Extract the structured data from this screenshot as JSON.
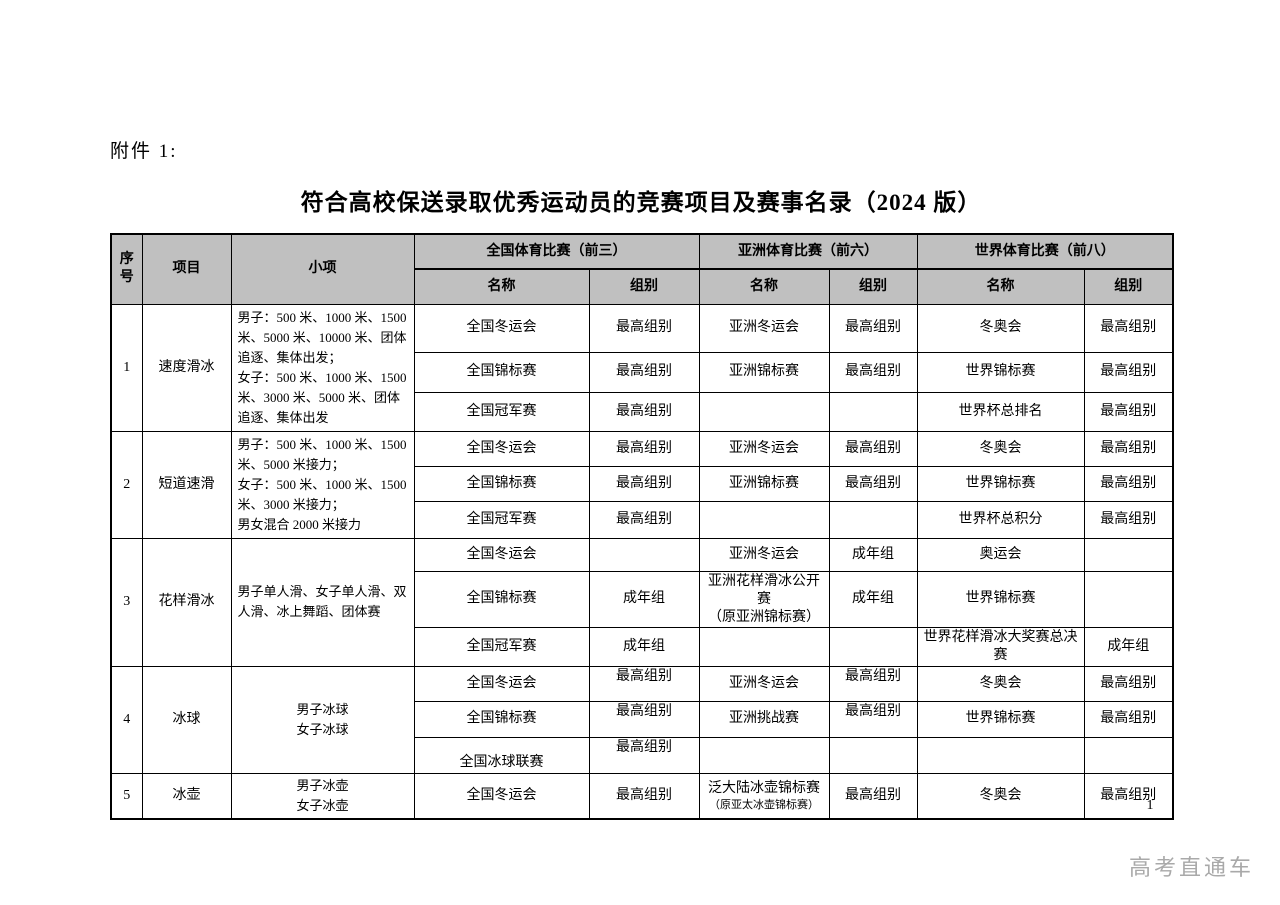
{
  "page": {
    "attachment_label": "附件 1:",
    "title": "符合高校保送录取优秀运动员的竞赛项目及赛事名录（2024 版）",
    "page_number": "1",
    "watermark": "高考直通车"
  },
  "table": {
    "header": {
      "seq": "序号",
      "sport": "项目",
      "events": "小项",
      "name_label": "名称",
      "division_label": "组别",
      "groups": [
        "全国体育比赛（前三）",
        "亚洲体育比赛（前六）",
        "世界体育比赛（前八）"
      ]
    },
    "rows": [
      {
        "seq": "1",
        "sport": "速度滑冰",
        "events_align": "left",
        "events": [
          "男子：500 米、1000 米、1500 米、5000 米、10000 米、团体追逐、集体出发；",
          "女子：500 米、1000 米、1500 米、3000 米、5000 米、团体追逐、集体出发"
        ],
        "subrows": [
          {
            "national": {
              "name": "全国冬运会",
              "div": "最高组别"
            },
            "asia": {
              "name": "亚洲冬运会",
              "div": "最高组别"
            },
            "world": {
              "name": "冬奥会",
              "div": "最高组别"
            }
          },
          {
            "national": {
              "name": "全国锦标赛",
              "div": "最高组别"
            },
            "asia": {
              "name": "亚洲锦标赛",
              "div": "最高组别"
            },
            "world": {
              "name": "世界锦标赛",
              "div": "最高组别"
            }
          },
          {
            "national": {
              "name": "全国冠军赛",
              "div": "最高组别"
            },
            "asia": {
              "name": "",
              "div": ""
            },
            "world": {
              "name": "世界杯总排名",
              "div": "最高组别"
            }
          }
        ]
      },
      {
        "seq": "2",
        "sport": "短道速滑",
        "events_align": "left",
        "events": [
          "男子：500 米、1000 米、1500 米、5000 米接力；",
          "女子：500 米、1000 米、1500 米、3000 米接力；",
          "男女混合 2000 米接力"
        ],
        "subrows": [
          {
            "national": {
              "name": "全国冬运会",
              "div": "最高组别"
            },
            "asia": {
              "name": "亚洲冬运会",
              "div": "最高组别"
            },
            "world": {
              "name": "冬奥会",
              "div": "最高组别"
            }
          },
          {
            "national": {
              "name": "全国锦标赛",
              "div": "最高组别"
            },
            "asia": {
              "name": "亚洲锦标赛",
              "div": "最高组别"
            },
            "world": {
              "name": "世界锦标赛",
              "div": "最高组别"
            }
          },
          {
            "national": {
              "name": "全国冠军赛",
              "div": "最高组别"
            },
            "asia": {
              "name": "",
              "div": ""
            },
            "world": {
              "name": "世界杯总积分",
              "div": "最高组别"
            }
          }
        ]
      },
      {
        "seq": "3",
        "sport": "花样滑冰",
        "events_align": "left",
        "events": [
          "男子单人滑、女子单人滑、双人滑、冰上舞蹈、团体赛"
        ],
        "subrows": [
          {
            "national": {
              "name": "全国冬运会",
              "div": ""
            },
            "asia": {
              "name": "亚洲冬运会",
              "div": "成年组"
            },
            "world": {
              "name": "奥运会",
              "div": ""
            }
          },
          {
            "national": {
              "name": "全国锦标赛",
              "div": "成年组"
            },
            "asia": {
              "name": "亚洲花样滑冰公开赛",
              "sub": "（原亚洲锦标赛）",
              "div": "成年组"
            },
            "world": {
              "name": "世界锦标赛",
              "div": ""
            }
          },
          {
            "national": {
              "name": "全国冠军赛",
              "div": "成年组"
            },
            "asia": {
              "name": "",
              "div": ""
            },
            "world": {
              "name": "世界花样滑冰大奖赛总决赛",
              "div": "成年组"
            }
          }
        ]
      },
      {
        "seq": "4",
        "sport": "冰球",
        "events_align": "center",
        "events": [
          "男子冰球",
          "女子冰球"
        ],
        "subrows": [
          {
            "national": {
              "name": "全国冬运会",
              "div": "最高组别",
              "div_va": "top"
            },
            "asia": {
              "name": "亚洲冬运会",
              "div": "最高组别",
              "div_va": "top"
            },
            "world": {
              "name": "冬奥会",
              "div": "最高组别"
            }
          },
          {
            "national": {
              "name": "全国锦标赛",
              "div": "最高组别",
              "div_va": "top"
            },
            "asia": {
              "name": "亚洲挑战赛",
              "div": "最高组别",
              "div_va": "top"
            },
            "world": {
              "name": "世界锦标赛",
              "div": "最高组别"
            }
          },
          {
            "national": {
              "name": "全国冰球联赛",
              "name_va": "bottom",
              "div": "最高组别",
              "div_va": "top"
            },
            "asia": {
              "name": "",
              "div": ""
            },
            "world": {
              "name": "",
              "div": ""
            }
          }
        ]
      },
      {
        "seq": "5",
        "sport": "冰壶",
        "events_align": "center",
        "events": [
          "男子冰壶",
          "女子冰壶"
        ],
        "subrows": [
          {
            "national": {
              "name": "全国冬运会",
              "div": "最高组别"
            },
            "asia": {
              "name": "泛大陆冰壶锦标赛",
              "sub": "（原亚太冰壶锦标赛）",
              "sub_small": true,
              "div": "最高组别"
            },
            "world": {
              "name": "冬奥会",
              "div": "最高组别"
            }
          }
        ]
      }
    ]
  }
}
